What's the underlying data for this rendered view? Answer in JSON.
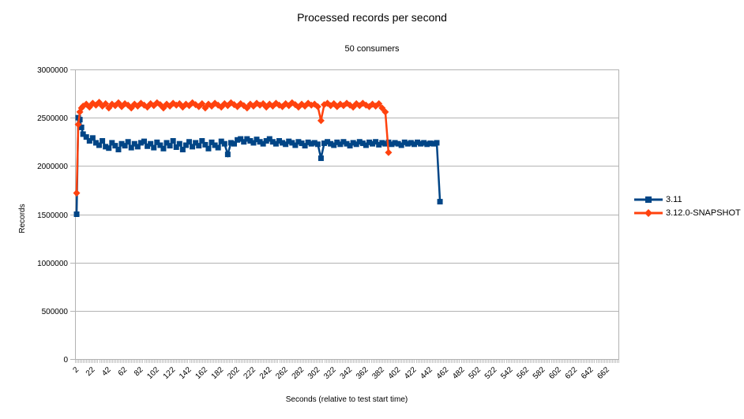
{
  "chart_data": {
    "type": "line",
    "title": "Processed records per second",
    "subtitle": "50 consumers",
    "xlabel": "Seconds  (relative to test start time)",
    "ylabel": "Records",
    "ylim": [
      0,
      3000000
    ],
    "ytick_step": 500000,
    "yticks": [
      0,
      500000,
      1000000,
      1500000,
      2000000,
      2500000,
      3000000
    ],
    "xlim": [
      0,
      676
    ],
    "xticks": [
      2,
      22,
      42,
      62,
      82,
      102,
      122,
      142,
      162,
      182,
      202,
      222,
      242,
      262,
      282,
      302,
      322,
      342,
      362,
      382,
      402,
      422,
      442,
      462,
      482,
      502,
      522,
      542,
      562,
      582,
      602,
      622,
      642,
      662
    ],
    "grid": "horizontal",
    "grid_color": "#b3b3b3",
    "axis_color": "#b3b3b3",
    "legend_position": "right",
    "series": [
      {
        "name": "3.11",
        "color": "#004586",
        "marker": "square",
        "points": [
          [
            2,
            1500000
          ],
          [
            4,
            2500000
          ],
          [
            6,
            2480000
          ],
          [
            8,
            2400000
          ],
          [
            10,
            2330000
          ],
          [
            14,
            2300000
          ],
          [
            18,
            2260000
          ],
          [
            22,
            2290000
          ],
          [
            26,
            2240000
          ],
          [
            30,
            2215000
          ],
          [
            34,
            2260000
          ],
          [
            38,
            2200000
          ],
          [
            42,
            2185000
          ],
          [
            46,
            2240000
          ],
          [
            50,
            2210000
          ],
          [
            54,
            2170000
          ],
          [
            58,
            2230000
          ],
          [
            62,
            2210000
          ],
          [
            66,
            2250000
          ],
          [
            70,
            2190000
          ],
          [
            74,
            2230000
          ],
          [
            78,
            2200000
          ],
          [
            82,
            2240000
          ],
          [
            86,
            2255000
          ],
          [
            90,
            2205000
          ],
          [
            94,
            2230000
          ],
          [
            98,
            2190000
          ],
          [
            102,
            2245000
          ],
          [
            106,
            2215000
          ],
          [
            110,
            2180000
          ],
          [
            114,
            2240000
          ],
          [
            118,
            2210000
          ],
          [
            122,
            2260000
          ],
          [
            126,
            2195000
          ],
          [
            130,
            2230000
          ],
          [
            134,
            2170000
          ],
          [
            138,
            2215000
          ],
          [
            142,
            2250000
          ],
          [
            146,
            2200000
          ],
          [
            150,
            2240000
          ],
          [
            154,
            2210000
          ],
          [
            158,
            2260000
          ],
          [
            162,
            2220000
          ],
          [
            166,
            2180000
          ],
          [
            170,
            2245000
          ],
          [
            174,
            2215000
          ],
          [
            178,
            2190000
          ],
          [
            182,
            2255000
          ],
          [
            186,
            2230000
          ],
          [
            190,
            2120000
          ],
          [
            194,
            2240000
          ],
          [
            198,
            2230000
          ],
          [
            202,
            2270000
          ],
          [
            206,
            2280000
          ],
          [
            210,
            2250000
          ],
          [
            214,
            2280000
          ],
          [
            218,
            2260000
          ],
          [
            222,
            2240000
          ],
          [
            226,
            2275000
          ],
          [
            230,
            2250000
          ],
          [
            234,
            2230000
          ],
          [
            238,
            2260000
          ],
          [
            242,
            2280000
          ],
          [
            246,
            2250000
          ],
          [
            250,
            2230000
          ],
          [
            254,
            2260000
          ],
          [
            258,
            2240000
          ],
          [
            262,
            2225000
          ],
          [
            266,
            2255000
          ],
          [
            270,
            2240000
          ],
          [
            274,
            2215000
          ],
          [
            278,
            2250000
          ],
          [
            282,
            2235000
          ],
          [
            286,
            2210000
          ],
          [
            290,
            2245000
          ],
          [
            294,
            2230000
          ],
          [
            298,
            2240000
          ],
          [
            302,
            2225000
          ],
          [
            306,
            2080000
          ],
          [
            310,
            2235000
          ],
          [
            314,
            2250000
          ],
          [
            318,
            2230000
          ],
          [
            322,
            2215000
          ],
          [
            326,
            2245000
          ],
          [
            330,
            2225000
          ],
          [
            334,
            2250000
          ],
          [
            338,
            2230000
          ],
          [
            342,
            2210000
          ],
          [
            346,
            2240000
          ],
          [
            350,
            2225000
          ],
          [
            354,
            2250000
          ],
          [
            358,
            2235000
          ],
          [
            362,
            2215000
          ],
          [
            366,
            2245000
          ],
          [
            370,
            2230000
          ],
          [
            374,
            2250000
          ],
          [
            378,
            2220000
          ],
          [
            382,
            2240000
          ],
          [
            386,
            2230000
          ],
          [
            390,
            2245000
          ],
          [
            394,
            2225000
          ],
          [
            398,
            2240000
          ],
          [
            402,
            2230000
          ],
          [
            406,
            2215000
          ],
          [
            410,
            2245000
          ],
          [
            414,
            2230000
          ],
          [
            418,
            2240000
          ],
          [
            422,
            2225000
          ],
          [
            426,
            2245000
          ],
          [
            430,
            2230000
          ],
          [
            434,
            2240000
          ],
          [
            438,
            2225000
          ],
          [
            442,
            2235000
          ],
          [
            446,
            2230000
          ],
          [
            450,
            2240000
          ],
          [
            454,
            1630000
          ]
        ]
      },
      {
        "name": "3.12.0-SNAPSHOT",
        "color": "#FF420E",
        "marker": "diamond",
        "points": [
          [
            2,
            1720000
          ],
          [
            4,
            2430000
          ],
          [
            6,
            2560000
          ],
          [
            8,
            2600000
          ],
          [
            10,
            2620000
          ],
          [
            14,
            2640000
          ],
          [
            18,
            2610000
          ],
          [
            22,
            2650000
          ],
          [
            26,
            2630000
          ],
          [
            30,
            2660000
          ],
          [
            34,
            2620000
          ],
          [
            38,
            2645000
          ],
          [
            42,
            2600000
          ],
          [
            46,
            2640000
          ],
          [
            50,
            2625000
          ],
          [
            54,
            2655000
          ],
          [
            58,
            2615000
          ],
          [
            62,
            2645000
          ],
          [
            66,
            2630000
          ],
          [
            70,
            2600000
          ],
          [
            74,
            2640000
          ],
          [
            78,
            2620000
          ],
          [
            82,
            2650000
          ],
          [
            86,
            2630000
          ],
          [
            90,
            2610000
          ],
          [
            94,
            2645000
          ],
          [
            98,
            2625000
          ],
          [
            102,
            2655000
          ],
          [
            106,
            2635000
          ],
          [
            110,
            2600000
          ],
          [
            114,
            2640000
          ],
          [
            118,
            2620000
          ],
          [
            122,
            2650000
          ],
          [
            126,
            2630000
          ],
          [
            130,
            2645000
          ],
          [
            134,
            2610000
          ],
          [
            138,
            2640000
          ],
          [
            142,
            2625000
          ],
          [
            146,
            2655000
          ],
          [
            150,
            2635000
          ],
          [
            154,
            2615000
          ],
          [
            158,
            2645000
          ],
          [
            162,
            2600000
          ],
          [
            166,
            2640000
          ],
          [
            170,
            2620000
          ],
          [
            174,
            2650000
          ],
          [
            178,
            2630000
          ],
          [
            182,
            2610000
          ],
          [
            186,
            2645000
          ],
          [
            190,
            2625000
          ],
          [
            194,
            2655000
          ],
          [
            198,
            2635000
          ],
          [
            202,
            2615000
          ],
          [
            206,
            2645000
          ],
          [
            210,
            2625000
          ],
          [
            214,
            2600000
          ],
          [
            218,
            2640000
          ],
          [
            222,
            2620000
          ],
          [
            226,
            2650000
          ],
          [
            230,
            2630000
          ],
          [
            234,
            2645000
          ],
          [
            238,
            2610000
          ],
          [
            242,
            2640000
          ],
          [
            246,
            2620000
          ],
          [
            250,
            2650000
          ],
          [
            254,
            2630000
          ],
          [
            258,
            2615000
          ],
          [
            262,
            2645000
          ],
          [
            266,
            2625000
          ],
          [
            270,
            2655000
          ],
          [
            274,
            2635000
          ],
          [
            278,
            2610000
          ],
          [
            282,
            2640000
          ],
          [
            286,
            2620000
          ],
          [
            290,
            2650000
          ],
          [
            294,
            2630000
          ],
          [
            298,
            2640000
          ],
          [
            302,
            2615000
          ],
          [
            306,
            2470000
          ],
          [
            310,
            2635000
          ],
          [
            314,
            2650000
          ],
          [
            318,
            2625000
          ],
          [
            322,
            2645000
          ],
          [
            326,
            2615000
          ],
          [
            330,
            2640000
          ],
          [
            334,
            2625000
          ],
          [
            338,
            2650000
          ],
          [
            342,
            2630000
          ],
          [
            346,
            2610000
          ],
          [
            350,
            2645000
          ],
          [
            354,
            2625000
          ],
          [
            358,
            2650000
          ],
          [
            362,
            2630000
          ],
          [
            366,
            2615000
          ],
          [
            370,
            2640000
          ],
          [
            374,
            2620000
          ],
          [
            378,
            2645000
          ],
          [
            382,
            2600000
          ],
          [
            386,
            2560000
          ],
          [
            390,
            2140000
          ]
        ]
      }
    ]
  }
}
